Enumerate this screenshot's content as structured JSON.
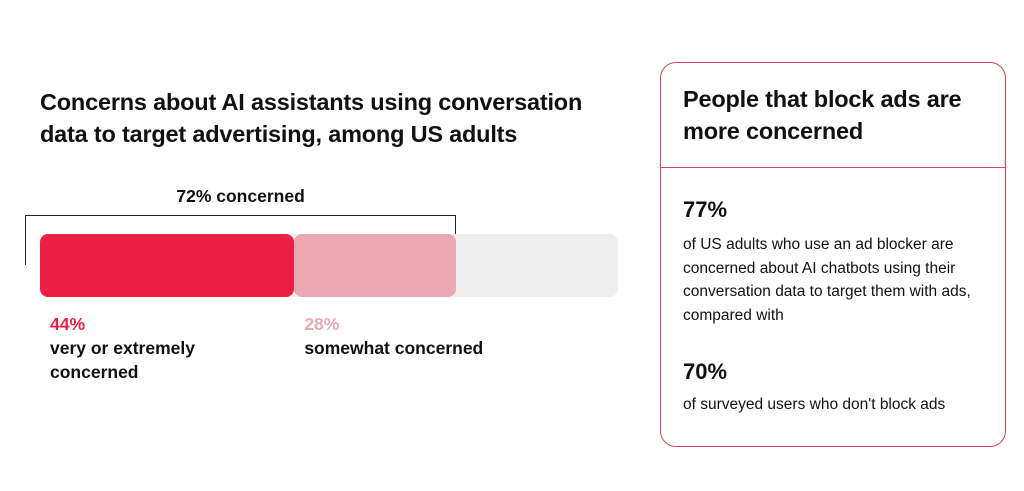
{
  "title": "Concerns about AI assistants using conversation data to target advertising, among US adults",
  "chart_data": {
    "type": "bar",
    "orientation": "horizontal-stacked",
    "total": 100,
    "segments": [
      {
        "value": 44,
        "label": "44%",
        "description": "very or extremely concerned",
        "color": "#ec1f45"
      },
      {
        "value": 28,
        "label": "28%",
        "description": "somewhat concerned",
        "color": "#eea8b4"
      }
    ],
    "remainder_color": "#eeeeee",
    "bracket": {
      "value": 72,
      "label": "72% concerned"
    }
  },
  "panel": {
    "title": "People that block ads are more concerned",
    "border_color": "#d6425a",
    "stats": [
      {
        "value": "77%",
        "description": "of US adults who use an ad blocker are concerned about AI chatbots using their conversation data to target them with ads, compared with"
      },
      {
        "value": "70%",
        "description": "of surveyed users who don't block ads"
      }
    ]
  }
}
